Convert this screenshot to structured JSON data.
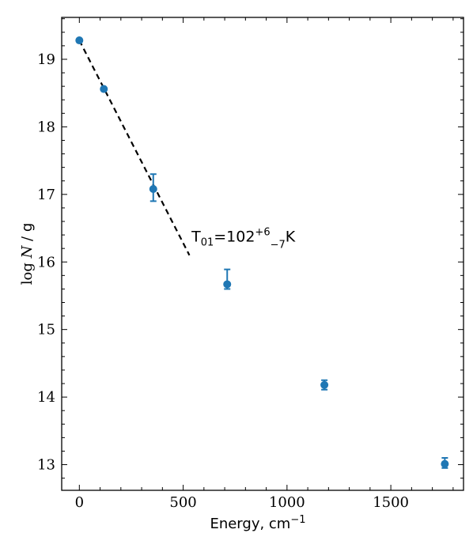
{
  "chart_data": {
    "type": "scatter",
    "xlabel": "Energy, cm",
    "xlabel_sup": "−1",
    "ylabel_pre": "log",
    "ylabel_var": "N",
    "ylabel_post": " / g",
    "xlim": [
      -85,
      1850
    ],
    "ylim": [
      12.62,
      19.62
    ],
    "xticks": [
      0,
      500,
      1000,
      1500
    ],
    "yticks": [
      13,
      14,
      15,
      16,
      17,
      18,
      19
    ],
    "grid": false,
    "color": "#1f77b4",
    "points": [
      {
        "x": 0,
        "y": 19.28,
        "err_low": 0,
        "err_high": 0
      },
      {
        "x": 118,
        "y": 18.56,
        "err_low": 0,
        "err_high": 0
      },
      {
        "x": 356,
        "y": 17.08,
        "err_low": 0.18,
        "err_high": 0.22
      },
      {
        "x": 712,
        "y": 15.67,
        "err_low": 0.07,
        "err_high": 0.22
      },
      {
        "x": 1180,
        "y": 14.18,
        "err_low": 0.07,
        "err_high": 0.07
      },
      {
        "x": 1760,
        "y": 13.01,
        "err_low": 0.06,
        "err_high": 0.09
      }
    ],
    "fit_line": {
      "x": [
        0,
        530
      ],
      "y": [
        19.28,
        16.1
      ],
      "style": "dashed",
      "color": "#000000"
    },
    "annotation": {
      "T_main": "T",
      "T_sub": "01",
      "value": "=102",
      "sup": "+6",
      "sub": "−7",
      "unit": "K",
      "x": 540,
      "y": 16.3
    }
  }
}
